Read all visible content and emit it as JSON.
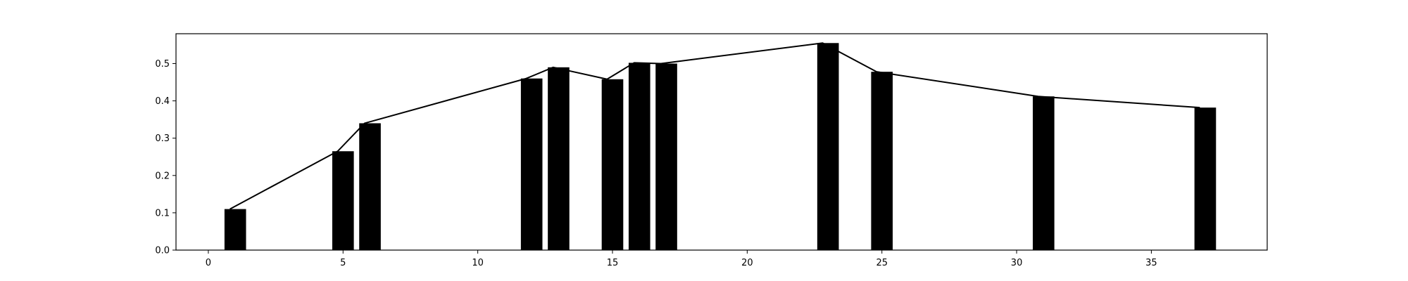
{
  "chart_data": {
    "type": "bar",
    "title": "",
    "xlabel": "",
    "ylabel": "",
    "xlim": [
      -1.2,
      39.3
    ],
    "ylim": [
      0,
      0.58
    ],
    "grid": false,
    "x_ticks": [
      0,
      5,
      10,
      15,
      20,
      25,
      30,
      35
    ],
    "x_tick_labels": [
      "0",
      "5",
      "10",
      "15",
      "20",
      "25",
      "30",
      "35"
    ],
    "y_ticks": [
      0.0,
      0.1,
      0.2,
      0.3,
      0.4,
      0.5
    ],
    "y_tick_labels": [
      "0.0",
      "0.1",
      "0.2",
      "0.3",
      "0.4",
      "0.5"
    ],
    "bar_width": 0.8,
    "series": [
      {
        "type": "bar",
        "color": "#000000",
        "x": [
          1,
          5,
          6,
          12,
          13,
          15,
          16,
          17,
          23,
          25,
          31,
          37
        ],
        "values": [
          0.11,
          0.265,
          0.34,
          0.46,
          0.49,
          0.458,
          0.502,
          0.5,
          0.555,
          0.478,
          0.412,
          0.382
        ]
      },
      {
        "type": "line",
        "color": "#000000",
        "x": [
          0.8,
          4.8,
          5.8,
          11.8,
          12.8,
          14.8,
          15.8,
          16.8,
          22.8,
          24.8,
          30.8,
          36.8
        ],
        "values": [
          0.11,
          0.265,
          0.34,
          0.46,
          0.49,
          0.458,
          0.502,
          0.5,
          0.555,
          0.478,
          0.412,
          0.382
        ]
      }
    ]
  }
}
